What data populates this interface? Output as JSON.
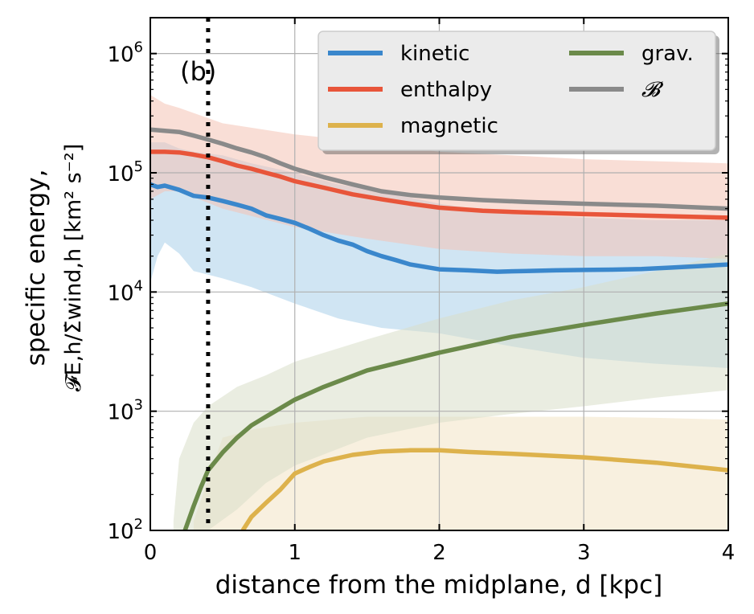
{
  "chart_data": {
    "type": "line",
    "panel_label": "(b)",
    "xlabel": "distance from the midplane, d [kpc]",
    "ylabel_line1": "specific energy,",
    "ylabel_line2": "𝓕E,h/Σ̇wind,h [km² s⁻²]",
    "xlim": [
      0,
      4
    ],
    "ylim": [
      100,
      2000000
    ],
    "yscale": "log",
    "grid": true,
    "legend_position": "top-right",
    "x_ticks": [
      {
        "value": 0,
        "label": "0"
      },
      {
        "value": 1,
        "label": "1"
      },
      {
        "value": 2,
        "label": "2"
      },
      {
        "value": 3,
        "label": "3"
      },
      {
        "value": 4,
        "label": "4"
      }
    ],
    "y_ticks": [
      {
        "value": 100,
        "base": "10",
        "exp": "2"
      },
      {
        "value": 1000,
        "base": "10",
        "exp": "3"
      },
      {
        "value": 10000,
        "base": "10",
        "exp": "4"
      },
      {
        "value": 100000,
        "base": "10",
        "exp": "5"
      },
      {
        "value": 1000000,
        "base": "10",
        "exp": "6"
      }
    ],
    "vline_x": 0.4,
    "series": [
      {
        "name": "kinetic",
        "color": "#3a87cc",
        "band_color": "#a9cfe9",
        "x": [
          0,
          0.05,
          0.1,
          0.2,
          0.3,
          0.4,
          0.5,
          0.6,
          0.7,
          0.8,
          0.9,
          1.0,
          1.1,
          1.2,
          1.3,
          1.4,
          1.5,
          1.6,
          1.7,
          1.8,
          2.0,
          2.2,
          2.4,
          2.6,
          2.8,
          3.0,
          3.2,
          3.4,
          3.6,
          3.8,
          4.0
        ],
        "y": [
          80000,
          76000,
          78000,
          72000,
          64000,
          62000,
          58000,
          54000,
          50000,
          44000,
          41000,
          38000,
          34000,
          30000,
          27000,
          25000,
          22000,
          20000,
          18500,
          17000,
          15500,
          15200,
          14800,
          15000,
          15200,
          15300,
          15400,
          15600,
          16000,
          16500,
          17000
        ],
        "band_x": [
          0,
          0.05,
          0.1,
          0.2,
          0.3,
          0.5,
          0.7,
          1.0,
          1.3,
          1.6,
          2.0,
          2.5,
          3.0,
          3.5,
          4.0
        ],
        "band_lo": [
          12000,
          20000,
          26000,
          21000,
          15000,
          13000,
          11000,
          8000,
          6000,
          5000,
          4500,
          3500,
          2800,
          2500,
          2300
        ],
        "band_hi": [
          180000,
          180000,
          180000,
          160000,
          150000,
          140000,
          120000,
          100000,
          80000,
          70000,
          55000,
          45000,
          42000,
          40000,
          40000
        ]
      },
      {
        "name": "enthalpy",
        "color": "#e8553a",
        "band_color": "#f4c3b4",
        "x": [
          0,
          0.1,
          0.2,
          0.3,
          0.4,
          0.5,
          0.6,
          0.7,
          0.8,
          0.9,
          1.0,
          1.2,
          1.4,
          1.6,
          1.8,
          2.0,
          2.3,
          2.6,
          3.0,
          3.5,
          4.0
        ],
        "y": [
          150000,
          150000,
          148000,
          142000,
          135000,
          125000,
          115000,
          108000,
          100000,
          93000,
          85000,
          75000,
          66000,
          60000,
          55000,
          51000,
          48000,
          46500,
          45000,
          43500,
          42000
        ],
        "band_x": [
          0,
          0.1,
          0.2,
          0.5,
          1.0,
          1.5,
          2.0,
          2.5,
          3.0,
          3.5,
          4.0
        ],
        "band_lo": [
          60000,
          70000,
          70000,
          50000,
          35000,
          28000,
          23000,
          21000,
          20000,
          20000,
          19000
        ],
        "band_hi": [
          450000,
          380000,
          350000,
          260000,
          210000,
          180000,
          150000,
          140000,
          130000,
          125000,
          120000
        ]
      },
      {
        "name": "magnetic",
        "color": "#ddb24c",
        "band_color": "#f2e4c4",
        "x": [
          0.64,
          0.7,
          0.8,
          0.9,
          1.0,
          1.1,
          1.2,
          1.4,
          1.6,
          1.8,
          2.0,
          2.2,
          2.5,
          3.0,
          3.5,
          4.0
        ],
        "y": [
          100,
          130,
          170,
          220,
          300,
          340,
          380,
          430,
          460,
          470,
          470,
          455,
          440,
          410,
          370,
          320
        ],
        "band_x": [
          0.3,
          0.5,
          0.7,
          1.0,
          1.5,
          2.0,
          2.5,
          3.0,
          3.5,
          4.0
        ],
        "band_lo": [
          100,
          100,
          100,
          100,
          100,
          100,
          100,
          100,
          100,
          100
        ],
        "band_hi": [
          120,
          600,
          700,
          800,
          900,
          900,
          900,
          900,
          880,
          850
        ]
      },
      {
        "name": "grav.",
        "color": "#6b8a4a",
        "band_color": "#d8dfc8",
        "x": [
          0.24,
          0.3,
          0.35,
          0.4,
          0.5,
          0.6,
          0.7,
          0.8,
          1.0,
          1.2,
          1.5,
          2.0,
          2.5,
          3.0,
          3.5,
          4.0
        ],
        "y": [
          100,
          160,
          230,
          320,
          450,
          600,
          760,
          900,
          1250,
          1600,
          2200,
          3100,
          4200,
          5300,
          6600,
          8000
        ],
        "band_x": [
          0.16,
          0.2,
          0.3,
          0.4,
          0.6,
          0.8,
          1.0,
          1.5,
          2.0,
          2.5,
          3.0,
          3.5,
          4.0
        ],
        "band_lo": [
          100,
          100,
          100,
          100,
          150,
          250,
          350,
          600,
          800,
          950,
          1100,
          1300,
          1500
        ],
        "band_hi": [
          120,
          400,
          800,
          1100,
          1600,
          2000,
          2600,
          4000,
          6000,
          8500,
          11000,
          15000,
          21000
        ]
      },
      {
        "name": "𝓑",
        "color": "#8a8a8a",
        "x": [
          0,
          0.1,
          0.2,
          0.3,
          0.4,
          0.5,
          0.6,
          0.7,
          0.8,
          0.9,
          1.0,
          1.2,
          1.4,
          1.6,
          1.8,
          2.0,
          2.3,
          2.6,
          3.0,
          3.5,
          4.0
        ],
        "y": [
          230000,
          225000,
          220000,
          205000,
          190000,
          175000,
          160000,
          148000,
          135000,
          120000,
          108000,
          92000,
          80000,
          70000,
          65000,
          62000,
          59000,
          57000,
          55000,
          53000,
          50000
        ]
      }
    ]
  }
}
